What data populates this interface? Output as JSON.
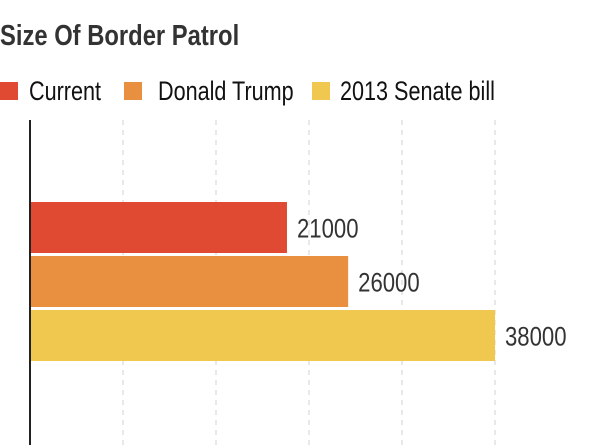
{
  "chart_data": {
    "type": "bar",
    "orientation": "horizontal",
    "title": "Size Of Border Patrol",
    "categories": [
      "Current",
      "Donald Trump",
      "2013 Senate bill"
    ],
    "series": [
      {
        "name": "Current",
        "value": 21000,
        "color": "#e04a33"
      },
      {
        "name": "Donald Trump",
        "value": 26000,
        "color": "#e8903f"
      },
      {
        "name": "2013 Senate bill",
        "value": 38000,
        "color": "#f0c850"
      }
    ],
    "data_labels": [
      "21000",
      "26000",
      "38000"
    ],
    "xlim": [
      0,
      38000
    ],
    "grid": true,
    "legend_position": "top-left"
  }
}
